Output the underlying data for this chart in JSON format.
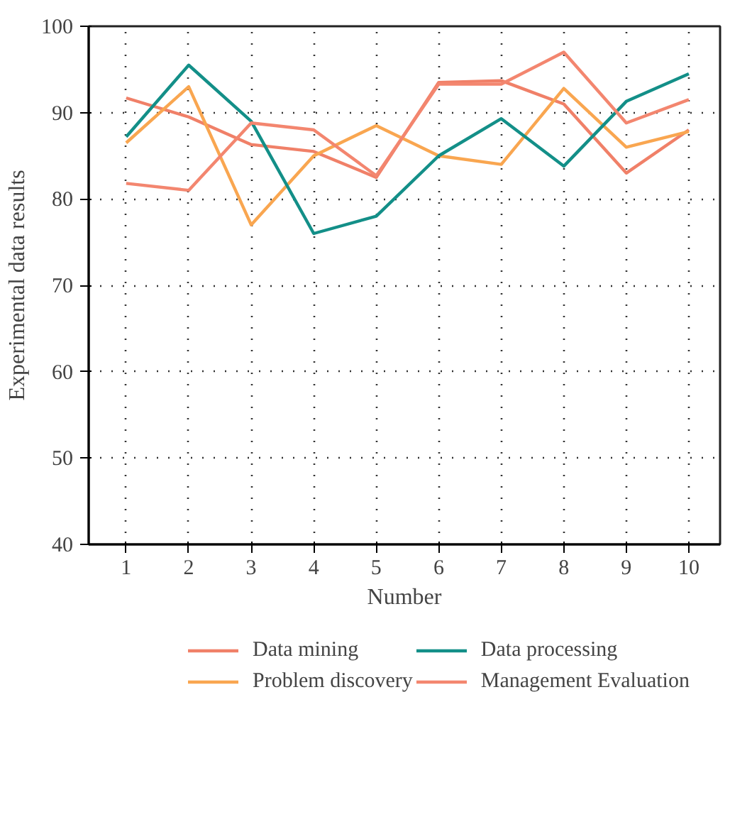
{
  "chart_data": {
    "type": "line",
    "xlabel": "Number",
    "ylabel": "Experimental data results",
    "x": [
      1,
      2,
      3,
      4,
      5,
      6,
      7,
      8,
      9,
      10
    ],
    "xlim": [
      0.4,
      10.5
    ],
    "ylim": [
      40,
      100
    ],
    "xticks": [
      1,
      2,
      3,
      4,
      5,
      6,
      7,
      8,
      9,
      10
    ],
    "yticks": [
      40,
      50,
      60,
      70,
      80,
      90,
      100
    ],
    "grid": true,
    "legend": "bottom",
    "line_style": "solid",
    "series": [
      {
        "name": "Data mining",
        "color": "#f08068",
        "values": [
          91.7,
          89.5,
          86.3,
          85.5,
          82.5,
          93.5,
          93.7,
          91,
          83,
          88
        ]
      },
      {
        "name": "Problem discovery",
        "color": "#f9a650",
        "values": [
          86.5,
          93,
          77,
          85,
          88.5,
          85,
          84,
          92.8,
          86,
          87.8
        ]
      },
      {
        "name": "Data processing",
        "color": "#138f88",
        "values": [
          87.2,
          95.5,
          89,
          76,
          78,
          85,
          89.3,
          83.8,
          91.3,
          94.5
        ]
      },
      {
        "name": "Management Evaluation",
        "color": "#f3866f",
        "values": [
          81.8,
          81,
          88.8,
          88,
          82.7,
          93.3,
          93.3,
          97,
          88.8,
          91.5
        ]
      }
    ]
  }
}
